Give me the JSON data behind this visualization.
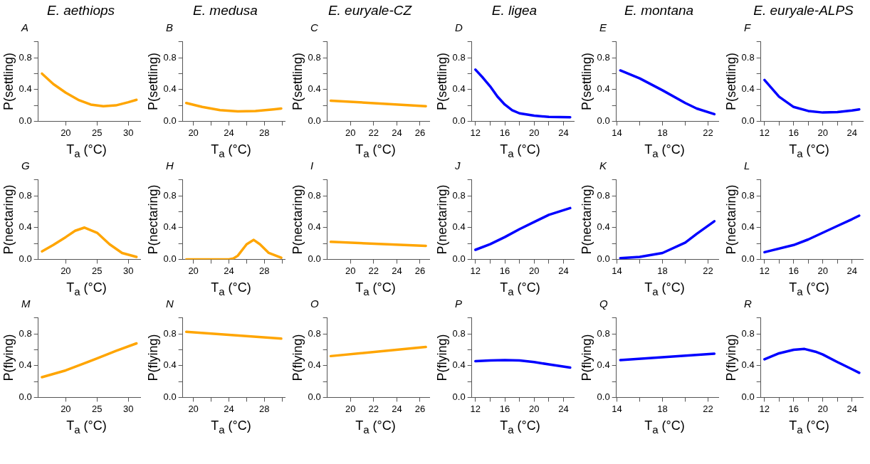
{
  "chart_data": [
    {
      "type": "line",
      "title": "E. aethiops",
      "annotations": [
        "A"
      ],
      "xlabel": "T$_{a}$ (°C)",
      "ylabel": "P(settling)",
      "color": "#ffa500",
      "x": [
        16.2,
        18,
        20,
        22,
        24,
        26,
        28,
        30,
        31.3
      ],
      "values": [
        0.6,
        0.47,
        0.36,
        0.27,
        0.21,
        0.19,
        0.2,
        0.24,
        0.27
      ],
      "xlim": [
        15.6,
        31.9
      ],
      "xticks": [
        20,
        25,
        30
      ],
      "ylim": [
        0,
        1
      ],
      "yticks": [
        {
          "value": 0,
          "label": "0.0"
        },
        {
          "value": 0.2,
          "label": null
        },
        {
          "value": 0.4,
          "label": "0.4"
        },
        {
          "value": 0.6,
          "label": null
        },
        {
          "value": 0.8,
          "label": "0.8"
        },
        {
          "value": 1,
          "label": null
        }
      ]
    },
    {
      "type": "line",
      "title": "E. medusa",
      "annotations": [
        "B"
      ],
      "xlabel": "T$_{a}$ (°C)",
      "ylabel": "P(settling)",
      "color": "#ffa500",
      "x": [
        19.2,
        21,
        23,
        25,
        27,
        29,
        29.9
      ],
      "values": [
        0.23,
        0.18,
        0.14,
        0.125,
        0.13,
        0.15,
        0.16
      ],
      "xlim": [
        18.8,
        30.3
      ],
      "xticks": [
        20,
        {
          "value": 22,
          "label": null
        },
        24,
        {
          "value": 26,
          "label": null
        },
        28,
        {
          "value": 30,
          "label": null
        }
      ],
      "ylim": [
        0,
        1
      ],
      "yticks": [
        {
          "value": 0,
          "label": "0.0"
        },
        {
          "value": 0.2,
          "label": null
        },
        {
          "value": 0.4,
          "label": "0.4"
        },
        {
          "value": 0.6,
          "label": null
        },
        {
          "value": 0.8,
          "label": "0.8"
        },
        {
          "value": 1,
          "label": null
        }
      ]
    },
    {
      "type": "line",
      "title": "E. euryale-CZ",
      "annotations": [
        "C"
      ],
      "xlabel": "T$_{a}$ (°C)",
      "ylabel": "P(settling)",
      "color": "#ffa500",
      "x": [
        18.3,
        26.5
      ],
      "values": [
        0.26,
        0.19
      ],
      "xlim": [
        18.0,
        26.8
      ],
      "xticks": [
        20,
        22,
        24,
        26
      ],
      "ylim": [
        0,
        1
      ],
      "yticks": [
        {
          "value": 0,
          "label": "0.0"
        },
        {
          "value": 0.2,
          "label": null
        },
        {
          "value": 0.4,
          "label": "0.4"
        },
        {
          "value": 0.6,
          "label": null
        },
        {
          "value": 0.8,
          "label": "0.8"
        },
        {
          "value": 1,
          "label": null
        }
      ]
    },
    {
      "type": "line",
      "title": "E. ligea",
      "annotations": [
        "D"
      ],
      "xlabel": "T$_{a}$ (°C)",
      "ylabel": "P(settling)",
      "color": "#0000ff",
      "x": [
        12,
        13,
        14,
        15,
        16,
        17,
        18,
        20,
        22,
        24.9
      ],
      "values": [
        0.65,
        0.55,
        0.44,
        0.31,
        0.21,
        0.14,
        0.1,
        0.07,
        0.055,
        0.05
      ],
      "xlim": [
        11.5,
        25.4
      ],
      "xticks": [
        12,
        {
          "value": 14,
          "label": null
        },
        16,
        {
          "value": 18,
          "label": null
        },
        20,
        {
          "value": 22,
          "label": null
        },
        24
      ],
      "ylim": [
        0,
        1
      ],
      "yticks": [
        {
          "value": 0,
          "label": "0.0"
        },
        {
          "value": 0.2,
          "label": null
        },
        {
          "value": 0.4,
          "label": "0.4"
        },
        {
          "value": 0.6,
          "label": null
        },
        {
          "value": 0.8,
          "label": "0.8"
        },
        {
          "value": 1,
          "label": null
        }
      ]
    },
    {
      "type": "line",
      "title": "E. montana",
      "annotations": [
        "E"
      ],
      "xlabel": "T$_{a}$ (°C)",
      "ylabel": "P(settling)",
      "color": "#0000ff",
      "x": [
        14.3,
        16,
        18,
        20,
        21,
        22.55
      ],
      "values": [
        0.64,
        0.54,
        0.39,
        0.23,
        0.16,
        0.09
      ],
      "xlim": [
        13.95,
        22.9
      ],
      "xticks": [
        14,
        {
          "value": 16,
          "label": null
        },
        18,
        {
          "value": 20,
          "label": null
        },
        22
      ],
      "ylim": [
        0,
        1
      ],
      "yticks": [
        {
          "value": 0,
          "label": "0.0"
        },
        {
          "value": 0.2,
          "label": null
        },
        {
          "value": 0.4,
          "label": "0.4"
        },
        {
          "value": 0.6,
          "label": null
        },
        {
          "value": 0.8,
          "label": "0.8"
        },
        {
          "value": 1,
          "label": null
        }
      ]
    },
    {
      "type": "line",
      "title": "E. euryale-ALPS",
      "annotations": [
        "F"
      ],
      "xlabel": "T$_{a}$ (°C)",
      "ylabel": "P(settling)",
      "color": "#0000ff",
      "x": [
        12,
        14,
        16,
        18,
        20,
        22,
        24,
        25
      ],
      "values": [
        0.52,
        0.31,
        0.18,
        0.13,
        0.11,
        0.115,
        0.135,
        0.15
      ],
      "xlim": [
        11.5,
        25.5
      ],
      "xticks": [
        12,
        {
          "value": 14,
          "label": null
        },
        16,
        {
          "value": 18,
          "label": null
        },
        20,
        {
          "value": 22,
          "label": null
        },
        24
      ],
      "ylim": [
        0,
        1
      ],
      "yticks": [
        {
          "value": 0,
          "label": "0.0"
        },
        {
          "value": 0.2,
          "label": null
        },
        {
          "value": 0.4,
          "label": "0.4"
        },
        {
          "value": 0.6,
          "label": null
        },
        {
          "value": 0.8,
          "label": "0.8"
        },
        {
          "value": 1,
          "label": null
        }
      ]
    },
    {
      "type": "line",
      "annotations": [
        "G"
      ],
      "xlabel": "T$_{a}$ (°C)",
      "ylabel": "P(nectaring)",
      "color": "#ffa500",
      "x": [
        16.2,
        18,
        20,
        21.5,
        23,
        25,
        27,
        29,
        31.3
      ],
      "values": [
        0.1,
        0.18,
        0.28,
        0.36,
        0.4,
        0.335,
        0.19,
        0.08,
        0.03
      ],
      "xlim": [
        15.6,
        31.9
      ],
      "xticks": [
        20,
        25,
        30
      ],
      "ylim": [
        0,
        1
      ],
      "yticks": [
        {
          "value": 0,
          "label": "0.0"
        },
        {
          "value": 0.2,
          "label": null
        },
        {
          "value": 0.4,
          "label": "0.4"
        },
        {
          "value": 0.6,
          "label": null
        },
        {
          "value": 0.8,
          "label": "0.8"
        },
        {
          "value": 1,
          "label": null
        }
      ]
    },
    {
      "type": "line",
      "annotations": [
        "H"
      ],
      "xlabel": "T$_{a}$ (°C)",
      "ylabel": "P(nectaring)",
      "color": "#ffa500",
      "x": [
        19.2,
        22,
        24,
        24.5,
        25,
        26,
        26.8,
        27.5,
        28.5,
        29.9
      ],
      "values": [
        0,
        0,
        0,
        0.01,
        0.045,
        0.19,
        0.245,
        0.19,
        0.08,
        0.02
      ],
      "xlim": [
        18.8,
        30.3
      ],
      "xticks": [
        20,
        {
          "value": 22,
          "label": null
        },
        24,
        {
          "value": 26,
          "label": null
        },
        28,
        {
          "value": 30,
          "label": null
        }
      ],
      "ylim": [
        0,
        1
      ],
      "yticks": [
        {
          "value": 0,
          "label": "0.0"
        },
        {
          "value": 0.2,
          "label": null
        },
        {
          "value": 0.4,
          "label": "0.4"
        },
        {
          "value": 0.6,
          "label": null
        },
        {
          "value": 0.8,
          "label": "0.8"
        },
        {
          "value": 1,
          "label": null
        }
      ]
    },
    {
      "type": "line",
      "annotations": [
        "I"
      ],
      "xlabel": "T$_{a}$ (°C)",
      "ylabel": "P(nectaring)",
      "color": "#ffa500",
      "x": [
        18.3,
        26.5
      ],
      "values": [
        0.22,
        0.17
      ],
      "xlim": [
        18.0,
        26.8
      ],
      "xticks": [
        20,
        22,
        24,
        26
      ],
      "ylim": [
        0,
        1
      ],
      "yticks": [
        {
          "value": 0,
          "label": "0.0"
        },
        {
          "value": 0.2,
          "label": null
        },
        {
          "value": 0.4,
          "label": "0.4"
        },
        {
          "value": 0.6,
          "label": null
        },
        {
          "value": 0.8,
          "label": "0.8"
        },
        {
          "value": 1,
          "label": null
        }
      ]
    },
    {
      "type": "line",
      "annotations": [
        "J"
      ],
      "xlabel": "T$_{a}$ (°C)",
      "ylabel": "P(nectaring)",
      "color": "#0000ff",
      "x": [
        12,
        14,
        16,
        18,
        20,
        22,
        24.9
      ],
      "values": [
        0.12,
        0.19,
        0.28,
        0.38,
        0.47,
        0.56,
        0.645
      ],
      "xlim": [
        11.5,
        25.4
      ],
      "xticks": [
        12,
        {
          "value": 14,
          "label": null
        },
        16,
        {
          "value": 18,
          "label": null
        },
        20,
        {
          "value": 22,
          "label": null
        },
        24
      ],
      "ylim": [
        0,
        1
      ],
      "yticks": [
        {
          "value": 0,
          "label": "0.0"
        },
        {
          "value": 0.2,
          "label": null
        },
        {
          "value": 0.4,
          "label": "0.4"
        },
        {
          "value": 0.6,
          "label": null
        },
        {
          "value": 0.8,
          "label": "0.8"
        },
        {
          "value": 1,
          "label": null
        }
      ]
    },
    {
      "type": "line",
      "annotations": [
        "K"
      ],
      "xlabel": "T$_{a}$ (°C)",
      "ylabel": "P(nectaring)",
      "color": "#0000ff",
      "x": [
        14.3,
        16,
        18,
        20,
        21,
        22.55
      ],
      "values": [
        0.015,
        0.03,
        0.08,
        0.21,
        0.32,
        0.48
      ],
      "xlim": [
        13.95,
        22.9
      ],
      "xticks": [
        14,
        {
          "value": 16,
          "label": null
        },
        18,
        {
          "value": 20,
          "label": null
        },
        22
      ],
      "ylim": [
        0,
        1
      ],
      "yticks": [
        {
          "value": 0,
          "label": "0.0"
        },
        {
          "value": 0.2,
          "label": null
        },
        {
          "value": 0.4,
          "label": "0.4"
        },
        {
          "value": 0.6,
          "label": null
        },
        {
          "value": 0.8,
          "label": "0.8"
        },
        {
          "value": 1,
          "label": null
        }
      ]
    },
    {
      "type": "line",
      "annotations": [
        "L"
      ],
      "xlabel": "T$_{a}$ (°C)",
      "ylabel": "P(nectaring)",
      "color": "#0000ff",
      "x": [
        12,
        16,
        18,
        20,
        22,
        24,
        25
      ],
      "values": [
        0.09,
        0.18,
        0.25,
        0.335,
        0.42,
        0.505,
        0.55
      ],
      "xlim": [
        11.5,
        25.5
      ],
      "xticks": [
        12,
        {
          "value": 14,
          "label": null
        },
        16,
        {
          "value": 18,
          "label": null
        },
        20,
        {
          "value": 22,
          "label": null
        },
        24
      ],
      "ylim": [
        0,
        1
      ],
      "yticks": [
        {
          "value": 0,
          "label": "0.0"
        },
        {
          "value": 0.2,
          "label": null
        },
        {
          "value": 0.4,
          "label": "0.4"
        },
        {
          "value": 0.6,
          "label": null
        },
        {
          "value": 0.8,
          "label": "0.8"
        },
        {
          "value": 1,
          "label": null
        }
      ]
    },
    {
      "type": "line",
      "annotations": [
        "M"
      ],
      "xlabel": "T$_{a}$ (°C)",
      "ylabel": "P(flying)",
      "color": "#ffa500",
      "x": [
        16.2,
        20,
        25,
        28,
        31.3
      ],
      "values": [
        0.255,
        0.34,
        0.49,
        0.585,
        0.68
      ],
      "xlim": [
        15.6,
        31.9
      ],
      "xticks": [
        20,
        25,
        30
      ],
      "ylim": [
        0,
        1
      ],
      "yticks": [
        {
          "value": 0,
          "label": "0.0"
        },
        {
          "value": 0.2,
          "label": null
        },
        {
          "value": 0.4,
          "label": "0.4"
        },
        {
          "value": 0.6,
          "label": null
        },
        {
          "value": 0.8,
          "label": "0.8"
        },
        {
          "value": 1,
          "label": null
        }
      ]
    },
    {
      "type": "line",
      "annotations": [
        "N"
      ],
      "xlabel": "T$_{a}$ (°C)",
      "ylabel": "P(flying)",
      "color": "#ffa500",
      "x": [
        19.2,
        29.9
      ],
      "values": [
        0.825,
        0.74
      ],
      "xlim": [
        18.8,
        30.3
      ],
      "xticks": [
        20,
        {
          "value": 22,
          "label": null
        },
        24,
        {
          "value": 26,
          "label": null
        },
        28,
        {
          "value": 30,
          "label": null
        }
      ],
      "ylim": [
        0,
        1
      ],
      "yticks": [
        {
          "value": 0,
          "label": "0.0"
        },
        {
          "value": 0.2,
          "label": null
        },
        {
          "value": 0.4,
          "label": "0.4"
        },
        {
          "value": 0.6,
          "label": null
        },
        {
          "value": 0.8,
          "label": "0.8"
        },
        {
          "value": 1,
          "label": null
        }
      ]
    },
    {
      "type": "line",
      "annotations": [
        "O"
      ],
      "xlabel": "T$_{a}$ (°C)",
      "ylabel": "P(flying)",
      "color": "#ffa500",
      "x": [
        18.3,
        26.5
      ],
      "values": [
        0.52,
        0.635
      ],
      "xlim": [
        18.0,
        26.8
      ],
      "xticks": [
        20,
        22,
        24,
        26
      ],
      "ylim": [
        0,
        1
      ],
      "yticks": [
        {
          "value": 0,
          "label": "0.0"
        },
        {
          "value": 0.2,
          "label": null
        },
        {
          "value": 0.4,
          "label": "0.4"
        },
        {
          "value": 0.6,
          "label": null
        },
        {
          "value": 0.8,
          "label": "0.8"
        },
        {
          "value": 1,
          "label": null
        }
      ]
    },
    {
      "type": "line",
      "annotations": [
        "P"
      ],
      "xlabel": "T$_{a}$ (°C)",
      "ylabel": "P(flying)",
      "color": "#0000ff",
      "x": [
        12,
        14,
        16,
        18,
        20,
        22,
        24.9
      ],
      "values": [
        0.455,
        0.465,
        0.47,
        0.465,
        0.445,
        0.415,
        0.375
      ],
      "xlim": [
        11.5,
        25.4
      ],
      "xticks": [
        12,
        {
          "value": 14,
          "label": null
        },
        16,
        {
          "value": 18,
          "label": null
        },
        20,
        {
          "value": 22,
          "label": null
        },
        24
      ],
      "ylim": [
        0,
        1
      ],
      "yticks": [
        {
          "value": 0,
          "label": "0.0"
        },
        {
          "value": 0.2,
          "label": null
        },
        {
          "value": 0.4,
          "label": "0.4"
        },
        {
          "value": 0.6,
          "label": null
        },
        {
          "value": 0.8,
          "label": "0.8"
        },
        {
          "value": 1,
          "label": null
        }
      ]
    },
    {
      "type": "line",
      "annotations": [
        "Q"
      ],
      "xlabel": "T$_{a}$ (°C)",
      "ylabel": "P(flying)",
      "color": "#0000ff",
      "x": [
        14.3,
        22.55
      ],
      "values": [
        0.47,
        0.55
      ],
      "xlim": [
        13.95,
        22.9
      ],
      "xticks": [
        14,
        {
          "value": 16,
          "label": null
        },
        18,
        {
          "value": 20,
          "label": null
        },
        22
      ],
      "ylim": [
        0,
        1
      ],
      "yticks": [
        {
          "value": 0,
          "label": "0.0"
        },
        {
          "value": 0.2,
          "label": null
        },
        {
          "value": 0.4,
          "label": "0.4"
        },
        {
          "value": 0.6,
          "label": null
        },
        {
          "value": 0.8,
          "label": "0.8"
        },
        {
          "value": 1,
          "label": null
        }
      ]
    },
    {
      "type": "line",
      "annotations": [
        "R"
      ],
      "xlabel": "T$_{a}$ (°C)",
      "ylabel": "P(flying)",
      "color": "#0000ff",
      "x": [
        12,
        14,
        16,
        17.5,
        19,
        20,
        22,
        24,
        25
      ],
      "values": [
        0.48,
        0.555,
        0.6,
        0.61,
        0.575,
        0.54,
        0.445,
        0.355,
        0.31
      ],
      "xlim": [
        11.5,
        25.5
      ],
      "xticks": [
        12,
        {
          "value": 14,
          "label": null
        },
        16,
        {
          "value": 18,
          "label": null
        },
        20,
        {
          "value": 22,
          "label": null
        },
        24
      ],
      "ylim": [
        0,
        1
      ],
      "yticks": [
        {
          "value": 0,
          "label": "0.0"
        },
        {
          "value": 0.2,
          "label": null
        },
        {
          "value": 0.4,
          "label": "0.4"
        },
        {
          "value": 0.6,
          "label": null
        },
        {
          "value": 0.8,
          "label": "0.8"
        },
        {
          "value": 1,
          "label": null
        }
      ]
    }
  ]
}
